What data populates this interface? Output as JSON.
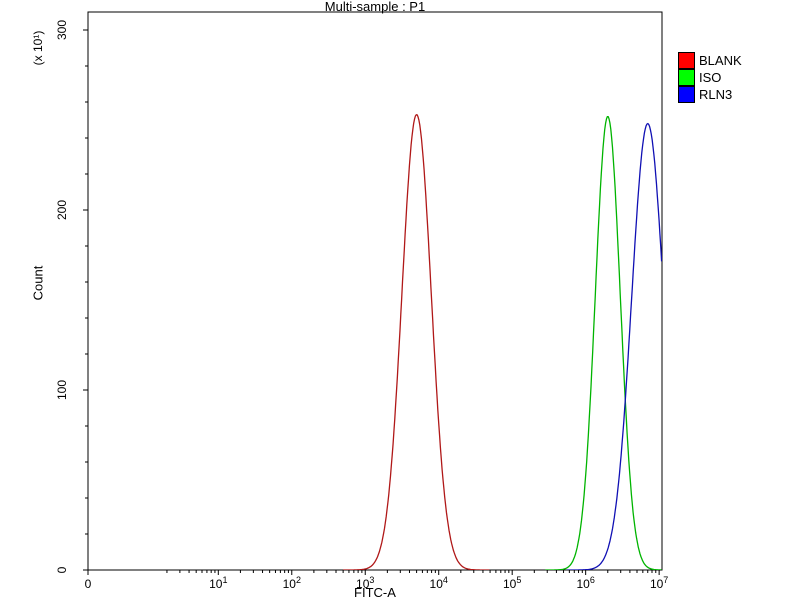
{
  "title": "Multi-sample : P1",
  "legend": {
    "items": [
      {
        "label": "BLANK",
        "color": "#ff0000"
      },
      {
        "label": "ISO",
        "color": "#00ff00"
      },
      {
        "label": "RLN3",
        "color": "#0000ff"
      }
    ]
  },
  "chart_data": {
    "type": "line",
    "subtype": "flow-cytometry-histogram",
    "title": "Multi-sample : P1",
    "xlabel": "FITC-A",
    "ylabel": "Count",
    "y_scale_note": "(x 10¹)",
    "x_scale": "log",
    "x_ticks": [
      0,
      10,
      100,
      1000,
      10000,
      100000,
      1000000,
      10000000
    ],
    "y_ticks": [
      0,
      100,
      200,
      300
    ],
    "ylim": [
      0,
      300
    ],
    "legend_position": "top-right-outside",
    "grid": false,
    "series": [
      {
        "name": "BLANK",
        "color": "#b01818",
        "legend_color": "#ff0000",
        "peak_x": 5000,
        "peak_count": 253,
        "sigma_decades": 0.2
      },
      {
        "name": "ISO",
        "color": "#00b400",
        "legend_color": "#00ff00",
        "peak_x": 2000000,
        "peak_count": 252,
        "sigma_decades": 0.17
      },
      {
        "name": "RLN3",
        "color": "#1010b4",
        "legend_color": "#0000ff",
        "peak_x": 7000000,
        "peak_count": 248,
        "sigma_decades": 0.22
      }
    ]
  }
}
